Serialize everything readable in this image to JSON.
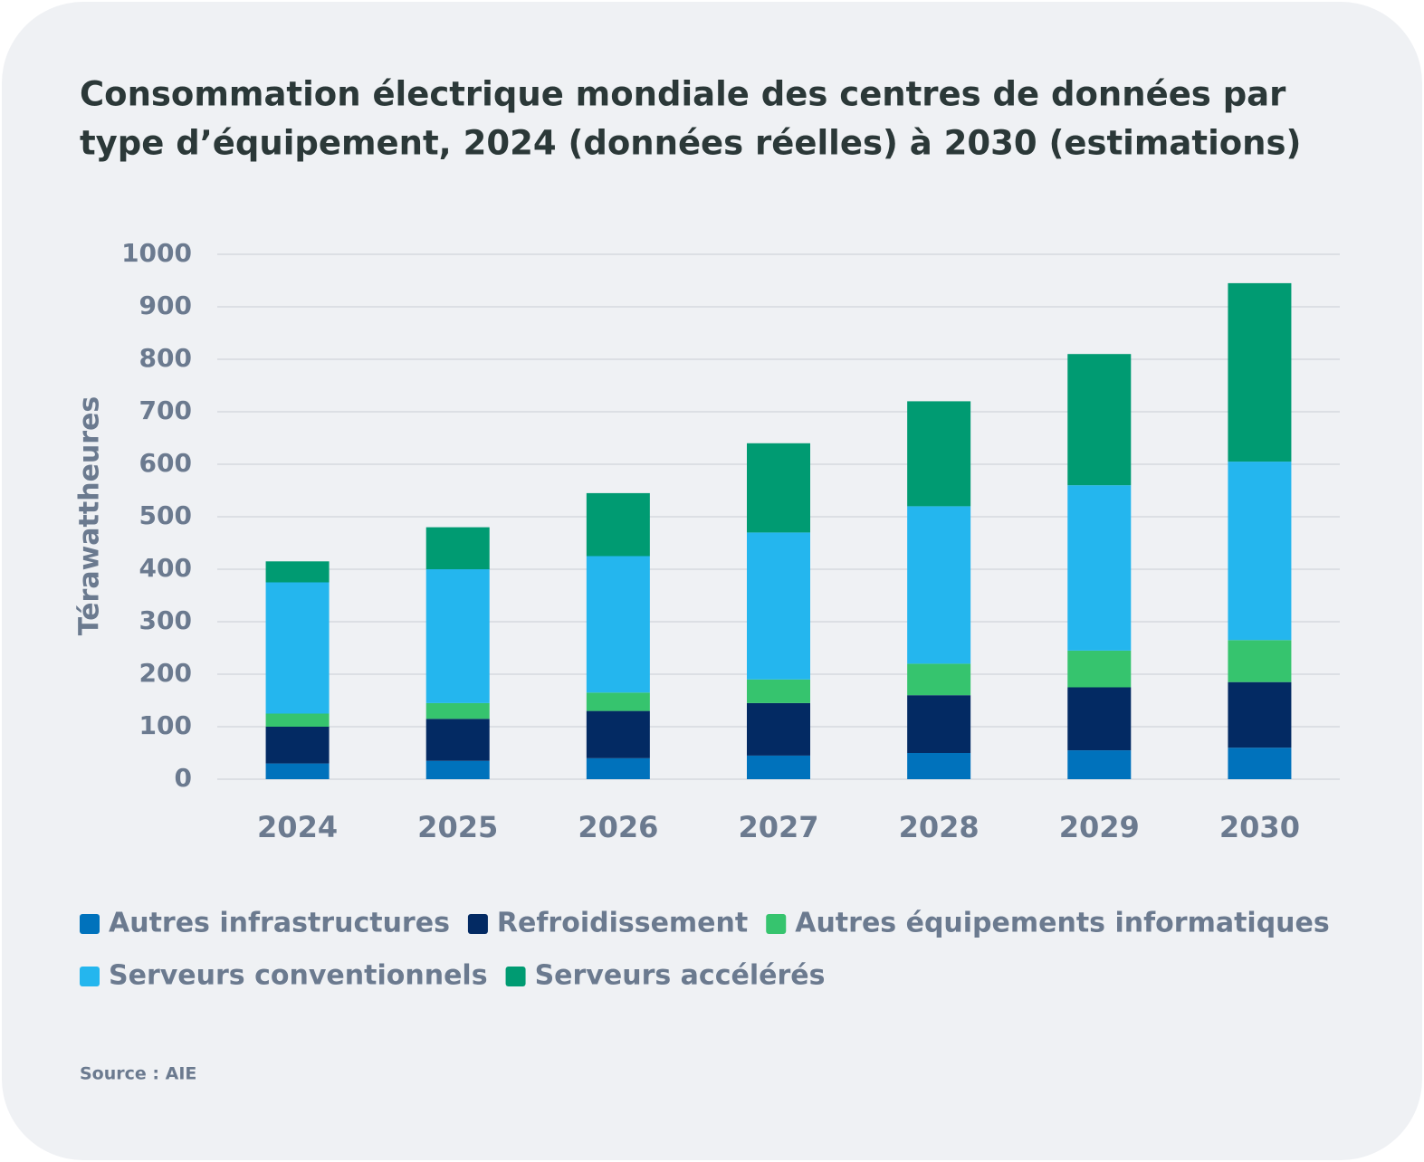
{
  "chart_data": {
    "type": "stacked_bar",
    "title": "Consommation électrique mondiale des centres de données par",
    "title_line2": "type d’équipement, 2024 (données réelles) à 2030 (estimations)",
    "y_label": "Térawattheures",
    "source": "Source : AIE",
    "categories": [
      "2024",
      "2025",
      "2026",
      "2027",
      "2028",
      "2029",
      "2030"
    ],
    "series": [
      {
        "name": "Autres infrastructures",
        "color": "#0072bc",
        "values": [
          30,
          35,
          40,
          45,
          50,
          55,
          60
        ]
      },
      {
        "name": "Refroidissement",
        "color": "#032a63",
        "values": [
          70,
          80,
          90,
          100,
          110,
          120,
          125
        ]
      },
      {
        "name": "Autres équipements informatiques",
        "color": "#36c46e",
        "values": [
          25,
          30,
          35,
          45,
          60,
          70,
          80
        ]
      },
      {
        "name": "Serveurs conventionnels",
        "color": "#24b6ee",
        "values": [
          250,
          255,
          260,
          280,
          300,
          315,
          340
        ]
      },
      {
        "name": "Serveurs accélérés",
        "color": "#009b72",
        "values": [
          40,
          80,
          120,
          170,
          200,
          250,
          340
        ]
      }
    ],
    "ylim": [
      0,
      1000
    ],
    "yticks": [
      0,
      100,
      200,
      300,
      400,
      500,
      600,
      700,
      800,
      900,
      1000
    ],
    "grid": true
  }
}
